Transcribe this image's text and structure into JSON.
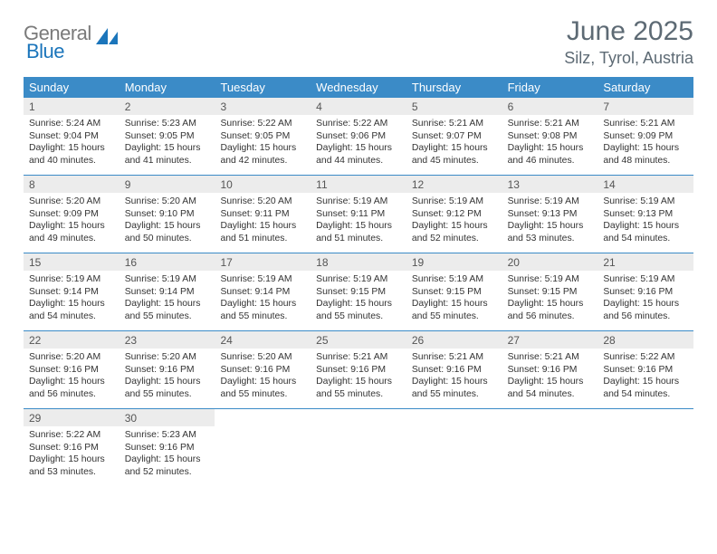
{
  "brand": {
    "gray": "General",
    "blue": "Blue"
  },
  "header": {
    "month_title": "June 2025",
    "location": "Silz, Tyrol, Austria"
  },
  "colors": {
    "header_bar": "#3b8bc7",
    "day_num_bg": "#ececec",
    "rule": "#3b8bc7",
    "logo_gray": "#7a7a7a",
    "logo_blue": "#1b75bb",
    "title_gray": "#5d6a74"
  },
  "dow": [
    "Sunday",
    "Monday",
    "Tuesday",
    "Wednesday",
    "Thursday",
    "Friday",
    "Saturday"
  ],
  "weeks": [
    [
      {
        "n": "1",
        "sr": "5:24 AM",
        "ss": "9:04 PM",
        "dl": "15 hours and 40 minutes."
      },
      {
        "n": "2",
        "sr": "5:23 AM",
        "ss": "9:05 PM",
        "dl": "15 hours and 41 minutes."
      },
      {
        "n": "3",
        "sr": "5:22 AM",
        "ss": "9:05 PM",
        "dl": "15 hours and 42 minutes."
      },
      {
        "n": "4",
        "sr": "5:22 AM",
        "ss": "9:06 PM",
        "dl": "15 hours and 44 minutes."
      },
      {
        "n": "5",
        "sr": "5:21 AM",
        "ss": "9:07 PM",
        "dl": "15 hours and 45 minutes."
      },
      {
        "n": "6",
        "sr": "5:21 AM",
        "ss": "9:08 PM",
        "dl": "15 hours and 46 minutes."
      },
      {
        "n": "7",
        "sr": "5:21 AM",
        "ss": "9:09 PM",
        "dl": "15 hours and 48 minutes."
      }
    ],
    [
      {
        "n": "8",
        "sr": "5:20 AM",
        "ss": "9:09 PM",
        "dl": "15 hours and 49 minutes."
      },
      {
        "n": "9",
        "sr": "5:20 AM",
        "ss": "9:10 PM",
        "dl": "15 hours and 50 minutes."
      },
      {
        "n": "10",
        "sr": "5:20 AM",
        "ss": "9:11 PM",
        "dl": "15 hours and 51 minutes."
      },
      {
        "n": "11",
        "sr": "5:19 AM",
        "ss": "9:11 PM",
        "dl": "15 hours and 51 minutes."
      },
      {
        "n": "12",
        "sr": "5:19 AM",
        "ss": "9:12 PM",
        "dl": "15 hours and 52 minutes."
      },
      {
        "n": "13",
        "sr": "5:19 AM",
        "ss": "9:13 PM",
        "dl": "15 hours and 53 minutes."
      },
      {
        "n": "14",
        "sr": "5:19 AM",
        "ss": "9:13 PM",
        "dl": "15 hours and 54 minutes."
      }
    ],
    [
      {
        "n": "15",
        "sr": "5:19 AM",
        "ss": "9:14 PM",
        "dl": "15 hours and 54 minutes."
      },
      {
        "n": "16",
        "sr": "5:19 AM",
        "ss": "9:14 PM",
        "dl": "15 hours and 55 minutes."
      },
      {
        "n": "17",
        "sr": "5:19 AM",
        "ss": "9:14 PM",
        "dl": "15 hours and 55 minutes."
      },
      {
        "n": "18",
        "sr": "5:19 AM",
        "ss": "9:15 PM",
        "dl": "15 hours and 55 minutes."
      },
      {
        "n": "19",
        "sr": "5:19 AM",
        "ss": "9:15 PM",
        "dl": "15 hours and 55 minutes."
      },
      {
        "n": "20",
        "sr": "5:19 AM",
        "ss": "9:15 PM",
        "dl": "15 hours and 56 minutes."
      },
      {
        "n": "21",
        "sr": "5:19 AM",
        "ss": "9:16 PM",
        "dl": "15 hours and 56 minutes."
      }
    ],
    [
      {
        "n": "22",
        "sr": "5:20 AM",
        "ss": "9:16 PM",
        "dl": "15 hours and 56 minutes."
      },
      {
        "n": "23",
        "sr": "5:20 AM",
        "ss": "9:16 PM",
        "dl": "15 hours and 55 minutes."
      },
      {
        "n": "24",
        "sr": "5:20 AM",
        "ss": "9:16 PM",
        "dl": "15 hours and 55 minutes."
      },
      {
        "n": "25",
        "sr": "5:21 AM",
        "ss": "9:16 PM",
        "dl": "15 hours and 55 minutes."
      },
      {
        "n": "26",
        "sr": "5:21 AM",
        "ss": "9:16 PM",
        "dl": "15 hours and 55 minutes."
      },
      {
        "n": "27",
        "sr": "5:21 AM",
        "ss": "9:16 PM",
        "dl": "15 hours and 54 minutes."
      },
      {
        "n": "28",
        "sr": "5:22 AM",
        "ss": "9:16 PM",
        "dl": "15 hours and 54 minutes."
      }
    ],
    [
      {
        "n": "29",
        "sr": "5:22 AM",
        "ss": "9:16 PM",
        "dl": "15 hours and 53 minutes."
      },
      {
        "n": "30",
        "sr": "5:23 AM",
        "ss": "9:16 PM",
        "dl": "15 hours and 52 minutes."
      },
      null,
      null,
      null,
      null,
      null
    ]
  ],
  "labels": {
    "sunrise": "Sunrise: ",
    "sunset": "Sunset: ",
    "daylight": "Daylight: "
  }
}
